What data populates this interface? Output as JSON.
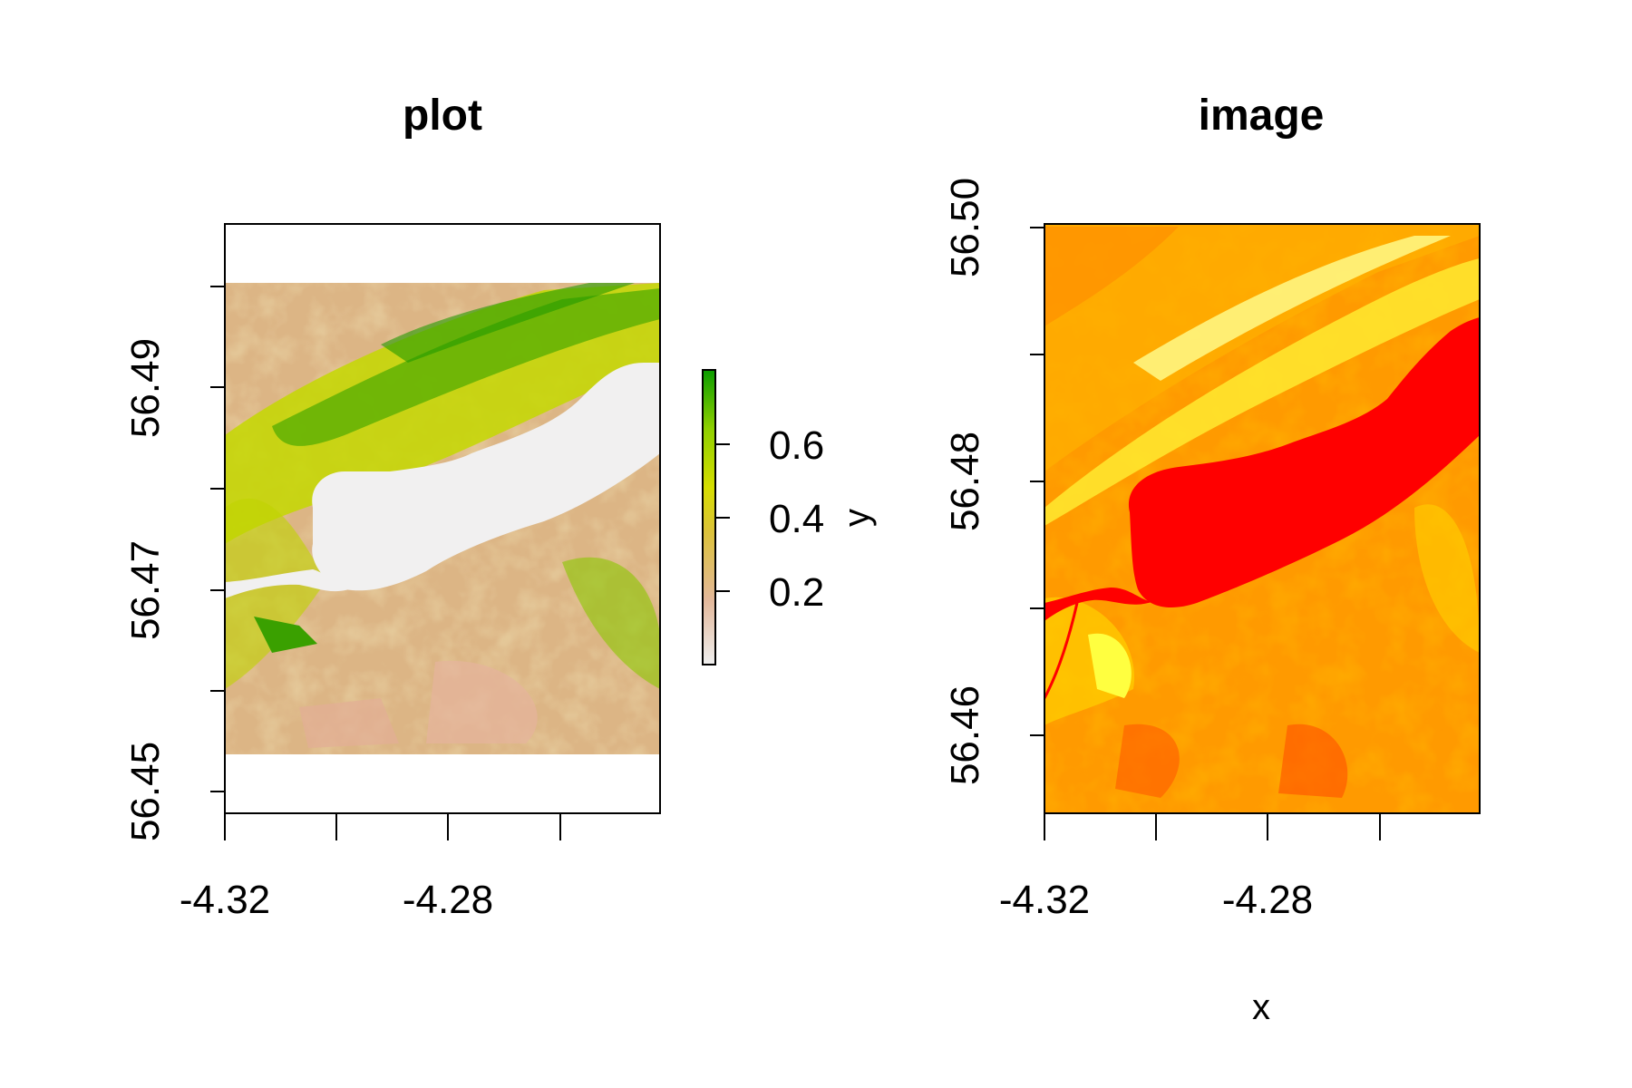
{
  "chart_data": [
    {
      "type": "heatmap",
      "title": "plot",
      "xlabel": "",
      "ylabel": "",
      "x_ticks": [
        "-4.32",
        "-4.28"
      ],
      "y_ticks": [
        "56.45",
        "56.47",
        "56.49"
      ],
      "xlim": [
        -4.32,
        -4.2645
      ],
      "ylim": [
        56.449,
        56.5065
      ],
      "raster_extent": {
        "x": [
          -4.32,
          -4.2645
        ],
        "y": [
          56.4548,
          56.5007
        ]
      },
      "colorbar": {
        "label": "y",
        "ticks": [
          "0.2",
          "0.4",
          "0.6"
        ],
        "range": [
          0.0,
          0.8
        ],
        "colors": [
          "#efefef",
          "#e3b89a",
          "#dcc23a",
          "#d6de00",
          "#8fd000",
          "#0a9c00"
        ]
      }
    },
    {
      "type": "heatmap",
      "title": "image",
      "xlabel": "x",
      "ylabel": "",
      "x_ticks": [
        "-4.32",
        "-4.28"
      ],
      "y_ticks": [
        "56.46",
        "56.48",
        "56.50"
      ],
      "xlim": [
        -4.32,
        -4.2645
      ],
      "ylim": [
        56.4548,
        56.5007
      ],
      "colors": [
        "#ff0000",
        "#ff7a00",
        "#ffb000",
        "#ffe000",
        "#ffff66"
      ]
    }
  ]
}
